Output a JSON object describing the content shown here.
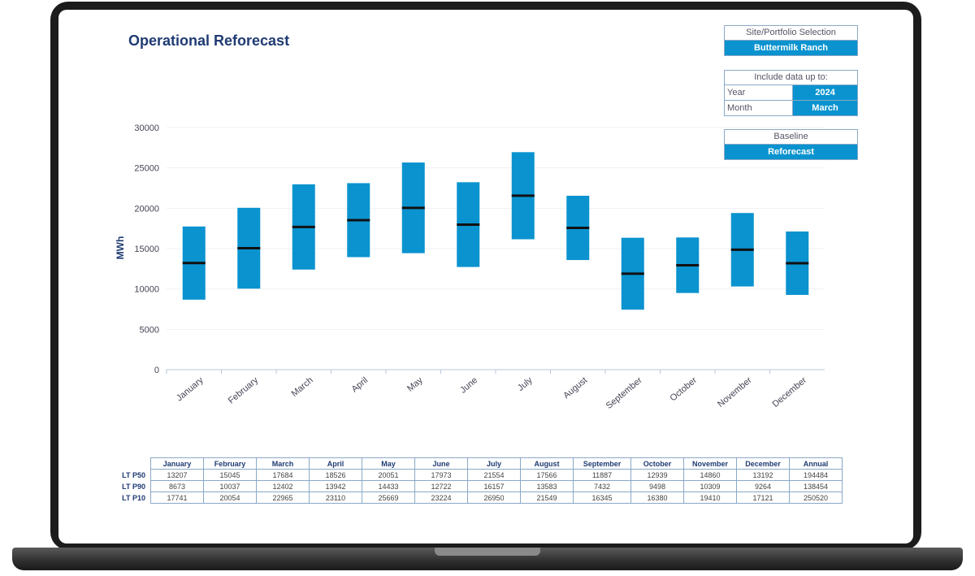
{
  "page": {
    "title": "Operational Reforecast"
  },
  "site_selection": {
    "header": "Site/Portfolio Selection",
    "value": "Buttermilk Ranch"
  },
  "include_data": {
    "header": "Include data up to:",
    "year_label": "Year",
    "year_value": "2024",
    "month_label": "Month",
    "month_value": "March"
  },
  "baseline": {
    "header": "Baseline",
    "value": "Reforecast"
  },
  "colors": {
    "bar": "#0a93cf",
    "median": "#111111",
    "title": "#1f3b73"
  },
  "chart_data": {
    "type": "bar",
    "subtype": "floating-range-with-median",
    "ylabel": "MWh",
    "ylim": [
      0,
      30000
    ],
    "yticks": [
      "0",
      "5000",
      "10000",
      "15000",
      "20000",
      "25000",
      "30000"
    ],
    "grid": true,
    "categories": [
      "January",
      "February",
      "March",
      "April",
      "May",
      "June",
      "July",
      "August",
      "September",
      "October",
      "November",
      "December"
    ],
    "series": [
      {
        "name": "LT P50",
        "values": [
          13207,
          15045,
          17684,
          18526,
          20051,
          17973,
          21554,
          17566,
          11887,
          12939,
          14860,
          13192
        ]
      },
      {
        "name": "LT P90",
        "values": [
          8673,
          10037,
          12402,
          13942,
          14433,
          12722,
          16157,
          13583,
          7432,
          9498,
          10309,
          9264
        ]
      },
      {
        "name": "LT P10",
        "values": [
          17741,
          20054,
          22965,
          23110,
          25669,
          23224,
          26950,
          21549,
          16345,
          16380,
          19410,
          17121
        ]
      }
    ]
  },
  "table": {
    "headers": [
      "January",
      "February",
      "March",
      "April",
      "May",
      "June",
      "July",
      "August",
      "September",
      "October",
      "November",
      "December",
      "Annual"
    ],
    "rows": [
      {
        "label": "LT P50",
        "cells": [
          "13207",
          "15045",
          "17684",
          "18526",
          "20051",
          "17973",
          "21554",
          "17566",
          "11887",
          "12939",
          "14860",
          "13192",
          "194484"
        ]
      },
      {
        "label": "LT P90",
        "cells": [
          "8673",
          "10037",
          "12402",
          "13942",
          "14433",
          "12722",
          "16157",
          "13583",
          "7432",
          "9498",
          "10309",
          "9264",
          "138454"
        ]
      },
      {
        "label": "LT P10",
        "cells": [
          "17741",
          "20054",
          "22965",
          "23110",
          "25669",
          "23224",
          "26950",
          "21549",
          "16345",
          "16380",
          "19410",
          "17121",
          "250520"
        ]
      }
    ]
  }
}
